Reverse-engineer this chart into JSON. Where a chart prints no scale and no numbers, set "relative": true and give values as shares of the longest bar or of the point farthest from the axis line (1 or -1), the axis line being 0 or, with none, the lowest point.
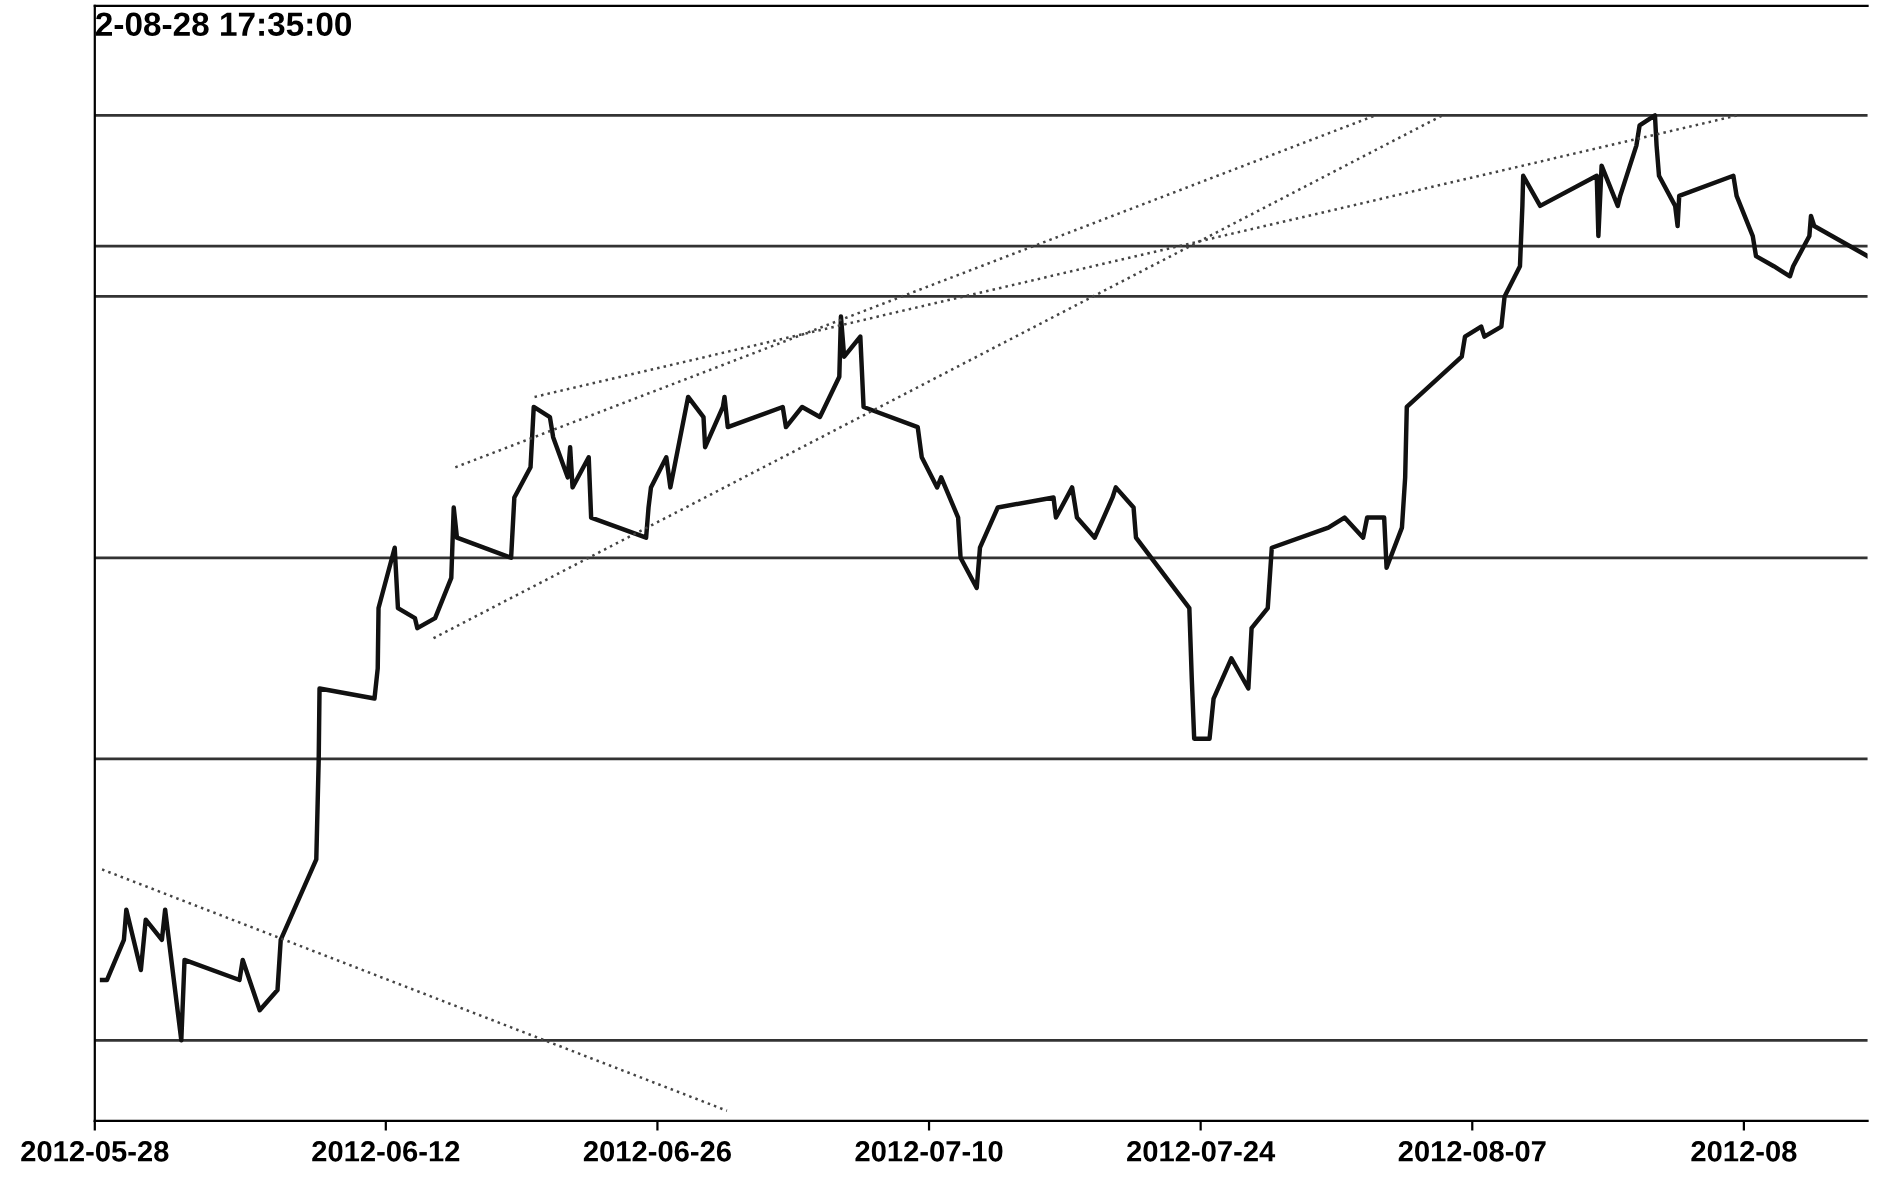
{
  "chart_data": {
    "type": "line",
    "relative": true,
    "annotations": [
      "2-08-28 17:35:00"
    ],
    "xlim": [
      "2012-05-28",
      "2012-08-27T09:00"
    ],
    "xticks": [
      "2012-05-28",
      "2012-06-12",
      "2012-06-26",
      "2012-07-10",
      "2012-07-24",
      "2012-08-07",
      {
        "value": "2012-08-21",
        "label": "2012-08"
      }
    ],
    "series": [
      {
        "color": "#111111",
        "line_style": "solid",
        "x": [
          "2012-05-28T09:00",
          "2012-05-28T15:00",
          "2012-05-29T12:00",
          "2012-05-29T15:00",
          "2012-05-30T09:00",
          "2012-05-30T15:00",
          "2012-05-31T11:00",
          "2012-05-31T15:00",
          "2012-06-01T11:00",
          "2012-06-01T15:00",
          "2012-06-04T11:00",
          "2012-06-04T15:00",
          "2012-06-05T12:00",
          "2012-06-06T10:00",
          "2012-06-06T14:00",
          "2012-06-08T10:00",
          "2012-06-08T13:00",
          "2012-06-08T14:00",
          "2012-06-11T10:00",
          "2012-06-11T14:00",
          "2012-06-11T15:00",
          "2012-06-12T11:00",
          "2012-06-12T15:00",
          "2012-06-13T12:00",
          "2012-06-13T15:00",
          "2012-06-14T13:00",
          "2012-06-15T09:00",
          "2012-06-15T12:00",
          "2012-06-15T16:00",
          "2012-06-18T11:00",
          "2012-06-18T15:00",
          "2012-06-19T11:00",
          "2012-06-19T15:00",
          "2012-06-20T11:00",
          "2012-06-20T15:00",
          "2012-06-21T09:00",
          "2012-06-21T12:00",
          "2012-06-21T15:00",
          "2012-06-22T11:00",
          "2012-06-22T14:00",
          "2012-06-25T10:00",
          "2012-06-25T13:00",
          "2012-06-25T16:00",
          "2012-06-26T11:00",
          "2012-06-26T16:00",
          "2012-06-27T14:00",
          "2012-06-28T09:00",
          "2012-06-28T11:00",
          "2012-06-29T09:00",
          "2012-06-29T11:00",
          "2012-06-29T15:00",
          "2012-07-02T11:00",
          "2012-07-02T15:00",
          "2012-07-03T11:00",
          "2012-07-04T09:00",
          "2012-07-04T15:00",
          "2012-07-05T09:00",
          "2012-07-05T11:00",
          "2012-07-05T15:00",
          "2012-07-06T11:00",
          "2012-07-06T15:00",
          "2012-07-09T10:00",
          "2012-07-09T15:00",
          "2012-07-10T10:00",
          "2012-07-10T15:00",
          "2012-07-11T12:00",
          "2012-07-11T15:00",
          "2012-07-12T11:00",
          "2012-07-12T15:00",
          "2012-07-13T13:00",
          "2012-07-16T10:00",
          "2012-07-16T13:00",
          "2012-07-17T09:00",
          "2012-07-17T15:00",
          "2012-07-18T13:00",
          "2012-07-19T11:00",
          "2012-07-19T15:00",
          "2012-07-20T13:00",
          "2012-07-20T16:00",
          "2012-07-23T10:00",
          "2012-07-23T13:00",
          "2012-07-23T16:00",
          "2012-07-24T11:00",
          "2012-07-24T16:00",
          "2012-07-25T14:00",
          "2012-07-26T11:00",
          "2012-07-26T15:00",
          "2012-07-27T11:00",
          "2012-07-27T16:00",
          "2012-07-30T14:00",
          "2012-07-31T10:00",
          "2012-08-01T09:00",
          "2012-08-01T14:00",
          "2012-08-02T11:00",
          "2012-08-02T14:00",
          "2012-08-03T09:00",
          "2012-08-03T13:00",
          "2012-08-03T15:00",
          "2012-08-06T11:00",
          "2012-08-06T15:00",
          "2012-08-07T11:00",
          "2012-08-07T15:00",
          "2012-08-08T12:00",
          "2012-08-08T16:00",
          "2012-08-09T11:00",
          "2012-08-09T14:00",
          "2012-08-09T15:00",
          "2012-08-10T12:00",
          "2012-08-13T10:00",
          "2012-08-13T12:00",
          "2012-08-13T16:00",
          "2012-08-14T12:00",
          "2012-08-14T15:00",
          "2012-08-15T11:00",
          "2012-08-15T15:00",
          "2012-08-16T10:00",
          "2012-08-16T12:00",
          "2012-08-16T15:00",
          "2012-08-17T11:00",
          "2012-08-17T14:00",
          "2012-08-17T16:00",
          "2012-08-20T11:00",
          "2012-08-20T15:00",
          "2012-08-21T11:00",
          "2012-08-21T15:00",
          "2012-08-22T13:00",
          "2012-08-23T09:00",
          "2012-08-23T13:00",
          "2012-08-24T09:00",
          "2012-08-24T11:00",
          "2012-08-24T15:00",
          "2012-08-27T09:00"
        ],
        "values": [
          0.14,
          0.14,
          0.18,
          0.21,
          0.15,
          0.2,
          0.18,
          0.21,
          0.08,
          0.16,
          0.14,
          0.16,
          0.11,
          0.13,
          0.18,
          0.26,
          0.36,
          0.43,
          0.42,
          0.45,
          0.51,
          0.57,
          0.51,
          0.5,
          0.49,
          0.5,
          0.54,
          0.61,
          0.58,
          0.56,
          0.62,
          0.65,
          0.71,
          0.7,
          0.68,
          0.64,
          0.67,
          0.63,
          0.66,
          0.6,
          0.58,
          0.61,
          0.63,
          0.66,
          0.63,
          0.72,
          0.7,
          0.67,
          0.71,
          0.72,
          0.69,
          0.71,
          0.69,
          0.71,
          0.7,
          0.71,
          0.74,
          0.8,
          0.76,
          0.78,
          0.71,
          0.69,
          0.66,
          0.63,
          0.64,
          0.6,
          0.56,
          0.53,
          0.57,
          0.61,
          0.62,
          0.6,
          0.63,
          0.6,
          0.58,
          0.62,
          0.63,
          0.61,
          0.58,
          0.51,
          0.44,
          0.38,
          0.38,
          0.42,
          0.46,
          0.43,
          0.49,
          0.51,
          0.57,
          0.59,
          0.6,
          0.58,
          0.6,
          0.6,
          0.55,
          0.59,
          0.64,
          0.71,
          0.76,
          0.78,
          0.79,
          0.78,
          0.79,
          0.82,
          0.85,
          0.91,
          0.94,
          0.91,
          0.94,
          0.88,
          0.95,
          0.91,
          0.92,
          0.97,
          0.99,
          1,
          0.97,
          0.94,
          0.91,
          0.89,
          0.92,
          0.94,
          0.92,
          0.88,
          0.86,
          0.85,
          0.84,
          0.85,
          0.88,
          0.9,
          0.89,
          0.86
        ]
      },
      {
        "color": "#444444",
        "line_style": "dotted",
        "x": [
          "2012-05-28T09:00",
          "2012-06-29T14:00"
        ],
        "values": [
          0.25,
          0.01
        ]
      },
      {
        "color": "#444444",
        "line_style": "dotted",
        "x": [
          "2012-06-14T11:00",
          "2012-08-05T11:00"
        ],
        "values": [
          0.48,
          1
        ]
      },
      {
        "color": "#444444",
        "line_style": "dotted",
        "x": [
          "2012-06-15T14:00",
          "2012-08-02T00:00"
        ],
        "values": [
          0.65,
          1
        ]
      },
      {
        "color": "#444444",
        "line_style": "dotted",
        "x": [
          "2012-06-19T16:00",
          "2012-08-20T16:00"
        ],
        "values": [
          0.72,
          1
        ]
      }
    ],
    "ref_lines": [
      {
        "axis": "y",
        "value": 1,
        "color": "#333333"
      },
      {
        "axis": "y",
        "value": 0.87,
        "color": "#333333"
      },
      {
        "axis": "y",
        "value": 0.82,
        "color": "#333333"
      },
      {
        "axis": "y",
        "value": 0.56,
        "color": "#333333"
      },
      {
        "axis": "y",
        "value": 0.36,
        "color": "#333333"
      },
      {
        "axis": "y",
        "value": 0.08,
        "color": "#333333"
      }
    ],
    "legend": false,
    "grid": false
  }
}
